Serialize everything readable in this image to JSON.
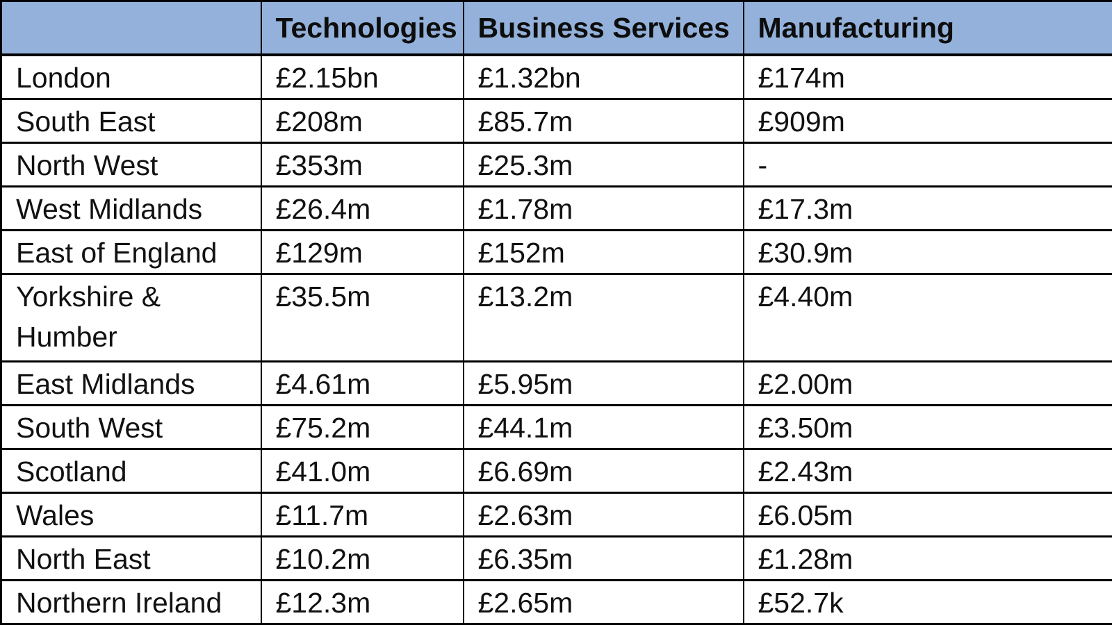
{
  "table": {
    "header_bg": "#93B1DA",
    "border_color": "#000000",
    "text_color": "#111111",
    "columns": [
      "",
      "Technologies",
      "Business Services",
      "Manufacturing"
    ],
    "rows": [
      {
        "region": "London",
        "values": [
          "£2.15bn",
          "£1.32bn",
          "£174m"
        ]
      },
      {
        "region": "South East",
        "values": [
          "£208m",
          "£85.7m",
          "£909m"
        ]
      },
      {
        "region": "North West",
        "values": [
          "£353m",
          "£25.3m",
          "-"
        ]
      },
      {
        "region": "West Midlands",
        "values": [
          "£26.4m",
          "£1.78m",
          "£17.3m"
        ]
      },
      {
        "region": "East of England",
        "values": [
          "£129m",
          "£152m",
          "£30.9m"
        ]
      },
      {
        "region": "Yorkshire &\nHumber",
        "values": [
          "£35.5m",
          "£13.2m",
          "£4.40m"
        ]
      },
      {
        "region": "East Midlands",
        "values": [
          "£4.61m",
          "£5.95m",
          "£2.00m"
        ]
      },
      {
        "region": "South West",
        "values": [
          "£75.2m",
          "£44.1m",
          "£3.50m"
        ]
      },
      {
        "region": "Scotland",
        "values": [
          "£41.0m",
          "£6.69m",
          "£2.43m"
        ]
      },
      {
        "region": "Wales",
        "values": [
          "£11.7m",
          "£2.63m",
          "£6.05m"
        ]
      },
      {
        "region": "North East",
        "values": [
          "£10.2m",
          "£6.35m",
          "£1.28m"
        ]
      },
      {
        "region": "Northern Ireland",
        "values": [
          "£12.3m",
          "£2.65m",
          "£52.7k"
        ],
        "partial": true
      }
    ]
  }
}
